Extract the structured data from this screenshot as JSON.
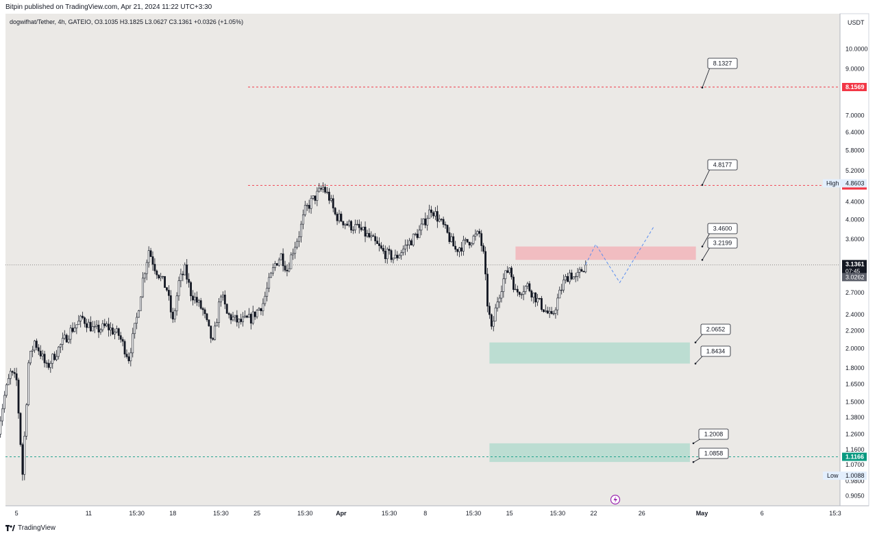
{
  "header": {
    "published": "Bitpin published on TradingView.com, Apr 21, 2024 11:22 UTC+3:30"
  },
  "legend": {
    "symbol": "dogwifhat/Tether, 4h, GATEIO",
    "ohlc": "O3.1035  H3.1825  L3.0627  C3.1361  +0.0326 (+1.05%)"
  },
  "footer": {
    "brand": "TradingView"
  },
  "colors": {
    "background": "#ebe9e6",
    "candle": "#131722",
    "resistance": "#f23645",
    "support": "#089981",
    "supply_zone": "#f2b8bd",
    "demand_zone": "#b7dccf",
    "projection": "#5b8def"
  },
  "chart_data": {
    "type": "candlestick",
    "symbol": "dogwifhat/Tether",
    "timeframe": "4h",
    "exchange": "GATEIO",
    "currency": "USDT",
    "y_scale": "log",
    "ylim": [
      0.9,
      11.2
    ],
    "y_ticks": [
      "10.0000",
      "9.0000",
      "8.1569",
      "7.0000",
      "6.4000",
      "5.8000",
      "5.2000",
      "4.8603",
      "4.8045",
      "4.4000",
      "4.0000",
      "3.6000",
      "3.1361",
      "3.0262",
      "2.7000",
      "2.4000",
      "2.2000",
      "2.0000",
      "1.8000",
      "1.6500",
      "1.5000",
      "1.3800",
      "1.2600",
      "1.1600",
      "1.1166",
      "1.0700",
      "1.0088",
      "0.9800",
      "0.9050"
    ],
    "x_ticks": [
      "5",
      "11",
      "15:30",
      "18",
      "15:30",
      "25",
      "15:30",
      "Apr",
      "15:30",
      "8",
      "15:30",
      "15",
      "15:30",
      "22",
      "26",
      "May",
      "6",
      "15:3"
    ],
    "current_price": {
      "value": "3.1361",
      "countdown": "07:45"
    },
    "prev_close_label": "3.0262",
    "high": {
      "label": "High",
      "value": "4.8603"
    },
    "low": {
      "label": "Low",
      "value": "1.0088"
    },
    "price_path": [
      [
        "Mar 3 12:00",
        1.3
      ],
      [
        "Mar 4 00:00",
        1.55
      ],
      [
        "Mar 4 12:00",
        1.75
      ],
      [
        "Mar 5 00:00",
        1.68
      ],
      [
        "Mar 5 12:00",
        1.02
      ],
      [
        "Mar 6 00:00",
        1.85
      ],
      [
        "Mar 6 12:00",
        2.08
      ],
      [
        "Mar 7 00:00",
        1.95
      ],
      [
        "Mar 7 12:00",
        1.8
      ],
      [
        "Mar 8 12:00",
        2.0
      ],
      [
        "Mar 9 12:00",
        2.2
      ],
      [
        "Mar 10 12:00",
        2.35
      ],
      [
        "Mar 11 12:00",
        2.2
      ],
      [
        "Mar 12 12:00",
        2.25
      ],
      [
        "Mar 13 12:00",
        2.15
      ],
      [
        "Mar 14 08:00",
        1.9
      ],
      [
        "Mar 15 00:00",
        2.35
      ],
      [
        "Mar 15 12:00",
        2.9
      ],
      [
        "Mar 16 00:00",
        3.4
      ],
      [
        "Mar 16 12:00",
        3.1
      ],
      [
        "Mar 17 12:00",
        2.75
      ],
      [
        "Mar 18 00:00",
        2.3
      ],
      [
        "Mar 18 12:00",
        2.85
      ],
      [
        "Mar 19 00:00",
        3.05
      ],
      [
        "Mar 19 12:00",
        2.7
      ],
      [
        "Mar 20 12:00",
        2.45
      ],
      [
        "Mar 21 08:00",
        2.05
      ],
      [
        "Mar 22 00:00",
        2.7
      ],
      [
        "Mar 22 12:00",
        2.4
      ],
      [
        "Mar 23 12:00",
        2.3
      ],
      [
        "Mar 24 12:00",
        2.35
      ],
      [
        "Mar 25 12:00",
        2.55
      ],
      [
        "Mar 26 00:00",
        2.85
      ],
      [
        "Mar 26 12:00",
        3.15
      ],
      [
        "Mar 27 00:00",
        3.3
      ],
      [
        "Mar 27 12:00",
        3.05
      ],
      [
        "Mar 28 00:00",
        3.4
      ],
      [
        "Mar 28 12:00",
        3.7
      ],
      [
        "Mar 29 00:00",
        4.2
      ],
      [
        "Mar 29 12:00",
        4.4
      ],
      [
        "Mar 30 12:00",
        4.75
      ],
      [
        "Mar 31 00:00",
        4.5
      ],
      [
        "Mar 31 12:00",
        4.1
      ],
      [
        "Apr 1 12:00",
        3.9
      ],
      [
        "Apr 2 12:00",
        3.8
      ],
      [
        "Apr 3 12:00",
        3.6
      ],
      [
        "Apr 4 12:00",
        3.35
      ],
      [
        "Apr 5 12:00",
        3.25
      ],
      [
        "Apr 6 12:00",
        3.5
      ],
      [
        "Apr 7 12:00",
        3.75
      ],
      [
        "Apr 8 12:00",
        4.25
      ],
      [
        "Apr 9 12:00",
        3.85
      ],
      [
        "Apr 10 12:00",
        3.4
      ],
      [
        "Apr 11 12:00",
        3.55
      ],
      [
        "Apr 12 12:00",
        3.7
      ],
      [
        "Apr 12 20:00",
        3.3
      ],
      [
        "Apr 13 04:00",
        2.55
      ],
      [
        "Apr 13 12:00",
        2.2
      ],
      [
        "Apr 14 00:00",
        2.6
      ],
      [
        "Apr 14 12:00",
        2.9
      ],
      [
        "Apr 15 00:00",
        3.1
      ],
      [
        "Apr 15 12:00",
        2.7
      ],
      [
        "Apr 16 12:00",
        2.8
      ],
      [
        "Apr 17 12:00",
        2.55
      ],
      [
        "Apr 18 12:00",
        2.35
      ],
      [
        "Apr 19 00:00",
        2.6
      ],
      [
        "Apr 19 12:00",
        2.85
      ],
      [
        "Apr 20 00:00",
        3.0
      ],
      [
        "Apr 20 12:00",
        2.9
      ],
      [
        "Apr 21 00:00",
        3.05
      ],
      [
        "Apr 21 08:00",
        3.14
      ]
    ],
    "horizontal_lines": [
      {
        "price": 8.1569,
        "label": "8.1569",
        "style": "dashed",
        "color": "#f23645"
      },
      {
        "price": 4.8045,
        "label": "4.8045",
        "style": "dashed",
        "color": "#f23645"
      },
      {
        "price": 1.1166,
        "label": "1.1166",
        "style": "dashed",
        "color": "#089981"
      }
    ],
    "zones": [
      {
        "kind": "supply",
        "top": 3.46,
        "bottom": 3.2199,
        "from": "Apr 15 12:00",
        "to": "Apr 30 12:00"
      },
      {
        "kind": "demand",
        "top": 2.0652,
        "bottom": 1.8434,
        "from": "Apr 13 08:00",
        "to": "Apr 30 00:00"
      },
      {
        "kind": "demand",
        "top": 1.2008,
        "bottom": 1.0858,
        "from": "Apr 13 08:00",
        "to": "Apr 30 00:00"
      }
    ],
    "callouts": [
      {
        "text": "8.1327",
        "price": 8.1327
      },
      {
        "text": "4.8177",
        "price": 4.8177
      },
      {
        "text": "3.4600",
        "price": 3.46
      },
      {
        "text": "3.2199",
        "price": 3.2199
      },
      {
        "text": "2.0652",
        "price": 2.0652
      },
      {
        "text": "1.8434",
        "price": 1.8434
      },
      {
        "text": "1.2008",
        "price": 1.2008
      },
      {
        "text": "1.0858",
        "price": 1.0858
      }
    ],
    "projection_path": [
      [
        "Apr 21 08:00",
        3.14
      ],
      [
        "Apr 22 04:00",
        3.5
      ],
      [
        "Apr 24 04:00",
        2.85
      ],
      [
        "Apr 27 00:00",
        3.85
      ]
    ]
  }
}
